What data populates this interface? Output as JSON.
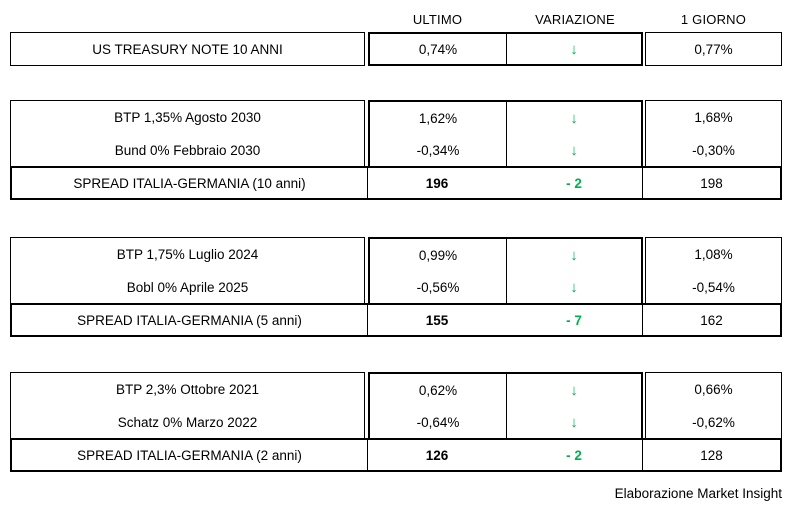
{
  "chart_data": {
    "type": "table",
    "columns": [
      "",
      "ULTIMO",
      "VARIAZIONE",
      "1 GIORNO"
    ],
    "rows": [
      [
        "US TREASURY NOTE 10 ANNI",
        "0,74%",
        "↓",
        "0,77%"
      ],
      [
        "BTP 1,35% Agosto 2030",
        "1,62%",
        "↓",
        "1,68%"
      ],
      [
        "Bund 0% Febbraio 2030",
        "-0,34%",
        "↓",
        "-0,30%"
      ],
      [
        "SPREAD ITALIA-GERMANIA (10 anni)",
        "196",
        "- 2",
        "198"
      ],
      [
        "BTP 1,75% Luglio 2024",
        "0,99%",
        "↓",
        "1,08%"
      ],
      [
        "Bobl 0% Aprile 2025",
        "-0,56%",
        "↓",
        "-0,54%"
      ],
      [
        "SPREAD ITALIA-GERMANIA (5 anni)",
        "155",
        "- 7",
        "162"
      ],
      [
        "BTP 2,3% Ottobre 2021",
        "0,62%",
        "↓",
        "0,66%"
      ],
      [
        "Schatz 0% Marzo 2022",
        "-0,64%",
        "↓",
        "-0,62%"
      ],
      [
        "SPREAD ITALIA-GERMANIA (2 anni)",
        "126",
        "- 2",
        "128"
      ]
    ],
    "layout": {
      "grid": "off",
      "bold_rows": "spread rows",
      "arrow_color_meaning": "green down arrow = decrease vs previous day"
    }
  },
  "colors": {
    "arrow_green": "#00B050",
    "border": "#000000",
    "background": "#FFFFFF"
  },
  "footer": {
    "text": "Elaborazione Market Insight"
  }
}
